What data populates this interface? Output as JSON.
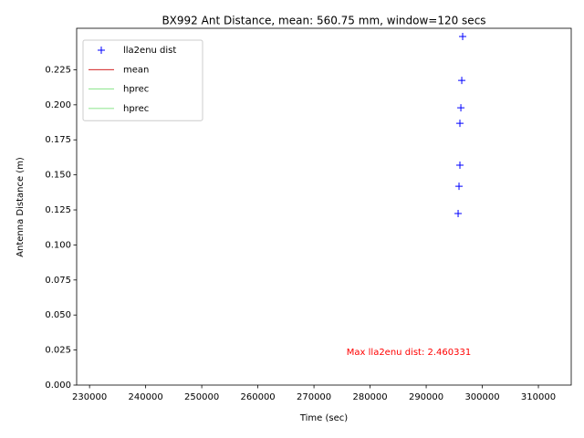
{
  "chart_data": {
    "type": "scatter",
    "title": "BX992 Ant Distance, mean: 560.75 mm, window=120 secs",
    "x_label": "Time (sec)",
    "y_label": "Antenna Distance (m)",
    "annotation": "Max lla2enu dist: 2.460331",
    "annotation_color": "#ff0000",
    "x": [
      296500,
      296340,
      296180,
      296010,
      296010,
      295850,
      295690
    ],
    "series": [
      {
        "name": "lla2enu dist",
        "color": "#0000ff",
        "marker": "+",
        "values": [
          0.2487,
          0.2174,
          0.1979,
          0.1868,
          0.1569,
          0.1419,
          0.1224
        ]
      },
      {
        "name": "mean",
        "color": "#cc0000",
        "marker": "line",
        "values": [
          null,
          null,
          null,
          null,
          null,
          null,
          null
        ]
      },
      {
        "name": "hprec",
        "color": "#66dd66",
        "marker": "line",
        "values": [
          null,
          null,
          null,
          null,
          null,
          null,
          null
        ]
      },
      {
        "name": "hprec",
        "color": "#66dd66",
        "marker": "line",
        "values": [
          null,
          null,
          null,
          null,
          null,
          null,
          null
        ]
      }
    ],
    "xlim": [
      227700,
      315850
    ],
    "ylim": [
      0,
      0.2546
    ],
    "xticks": [
      230000,
      240000,
      250000,
      260000,
      270000,
      280000,
      290000,
      300000,
      310000
    ],
    "yticks": [
      {
        "value": 0,
        "label": "0.000"
      },
      {
        "value": 0.025,
        "label": "0.025"
      },
      {
        "value": 0.05,
        "label": "0.050"
      },
      {
        "value": 0.075,
        "label": "0.075"
      },
      {
        "value": 0.1,
        "label": "0.100"
      },
      {
        "value": 0.125,
        "label": "0.125"
      },
      {
        "value": 0.15,
        "label": "0.150"
      },
      {
        "value": 0.175,
        "label": "0.175"
      },
      {
        "value": 0.2,
        "label": "0.200"
      },
      {
        "value": 0.225,
        "label": "0.225"
      }
    ],
    "legend": "upper left",
    "grid": false
  }
}
